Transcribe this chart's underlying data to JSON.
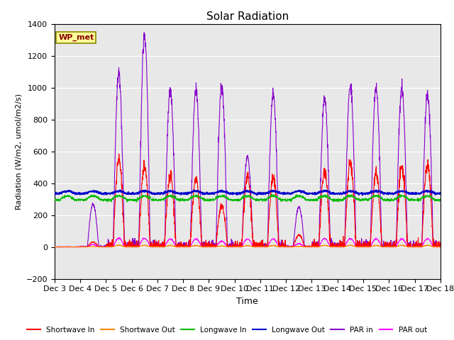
{
  "title": "Solar Radiation",
  "ylabel": "Radiation (W/m2, umol/m2/s)",
  "xlabel": "Time",
  "ylim": [
    -200,
    1400
  ],
  "annotation": "WP_met",
  "background_color": "#e8e8e8",
  "x_tick_labels": [
    "Dec 3",
    "Dec 4",
    "Dec 5",
    "Dec 6",
    "Dec 7",
    "Dec 8",
    "Dec 9",
    "Dec 10",
    "Dec 11",
    "Dec 12",
    "Dec 13",
    "Dec 14",
    "Dec 15",
    "Dec 16",
    "Dec 17",
    "Dec 18"
  ],
  "series": {
    "shortwave_in": {
      "color": "#ff0000",
      "label": "Shortwave In",
      "lw": 0.8
    },
    "shortwave_out": {
      "color": "#ff8800",
      "label": "Shortwave Out",
      "lw": 0.8
    },
    "longwave_in": {
      "color": "#00bb00",
      "label": "Longwave In",
      "lw": 0.8
    },
    "longwave_out": {
      "color": "#0000cc",
      "label": "Longwave Out",
      "lw": 1.2
    },
    "par_in": {
      "color": "#8800cc",
      "label": "PAR in",
      "lw": 0.8
    },
    "par_out": {
      "color": "#ff00ff",
      "label": "PAR out",
      "lw": 0.8
    }
  },
  "n_points": 2160,
  "days": 15
}
